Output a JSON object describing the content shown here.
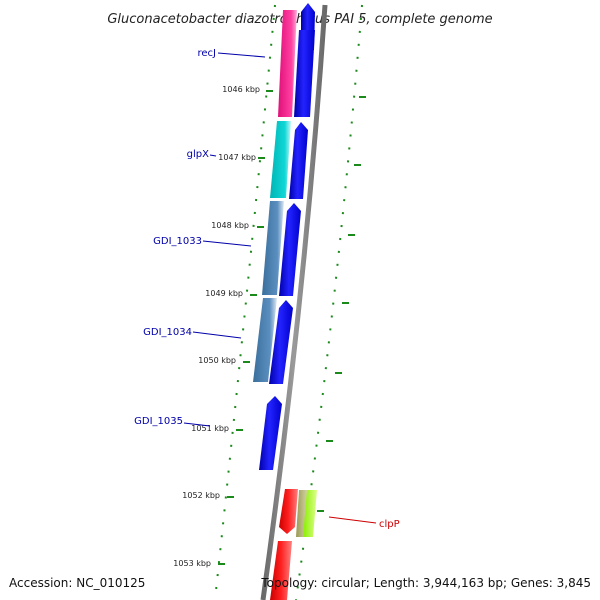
{
  "title": "Gluconacetobacter diazotrophicus PAI 5, complete genome",
  "accession": "Accession: NC_010125",
  "topology": "Topology: circular; Length: 3,944,163 bp; Genes: 3,845",
  "colors": {
    "backbone": "#808080",
    "tick": "#1a8a1a",
    "forward_gene": "#0000ee",
    "label_blue": "#0000aa",
    "label_red": "#cc0000",
    "magenta": "#ff1493",
    "cyan": "#00cccc",
    "steel_blue": "#4682b4",
    "red": "#ff0000",
    "olive": "#a8a860",
    "lime": "#99ff00"
  },
  "ruler": [
    {
      "label": "1046 kbp"
    },
    {
      "label": "1047 kbp"
    },
    {
      "label": "1048 kbp"
    },
    {
      "label": "1049 kbp"
    },
    {
      "label": "1050 kbp"
    },
    {
      "label": "1051 kbp"
    },
    {
      "label": "1052 kbp"
    },
    {
      "label": "1053 kbp"
    }
  ],
  "gene_labels": [
    {
      "name": "recJ"
    },
    {
      "name": "glpX"
    },
    {
      "name": "GDI_1033"
    },
    {
      "name": "GDI_1034"
    },
    {
      "name": "GDI_1035"
    },
    {
      "name": "clpP"
    }
  ]
}
